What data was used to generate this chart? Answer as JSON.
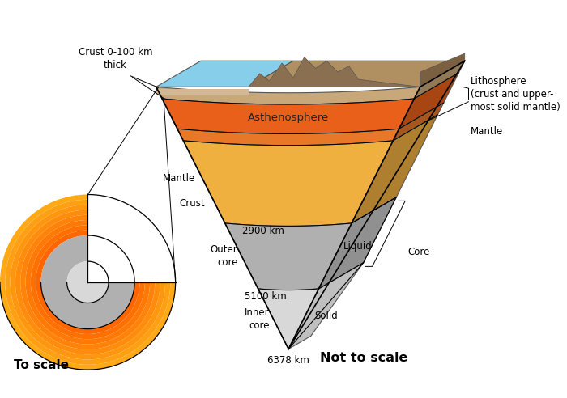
{
  "bg_color": "#ffffff",
  "layers": {
    "crust_color": "#c8a878",
    "asthenosphere_color": "#e8601a",
    "mantle_stripe_color": "#e87828",
    "mantle_color": "#f0b040",
    "outer_core_color": "#b0b0b0",
    "inner_core_color": "#d8d8d8",
    "ocean_color": "#87ceeb",
    "terrain_color": "#a08860"
  },
  "labels": {
    "crust_label": "Crust 0-100 km\nthick",
    "asthenosphere_label": "Asthenosphere",
    "mantle_left_label": "Mantle",
    "mantle_right_label": "Mantle",
    "lithosphere_label": "Lithosphere\n(crust and upper-\nmost solid mantle)",
    "outer_core_label": "Outer\ncore",
    "inner_core_label": "Inner\ncore",
    "liquid_label": "Liquid",
    "solid_label": "Solid",
    "core_label": "Core",
    "crust_small_label": "Crust",
    "depth_2900": "2900 km",
    "depth_5100": "5100 km",
    "depth_6378": "6378 km",
    "to_scale": "To scale",
    "not_to_scale": "Not to scale"
  }
}
